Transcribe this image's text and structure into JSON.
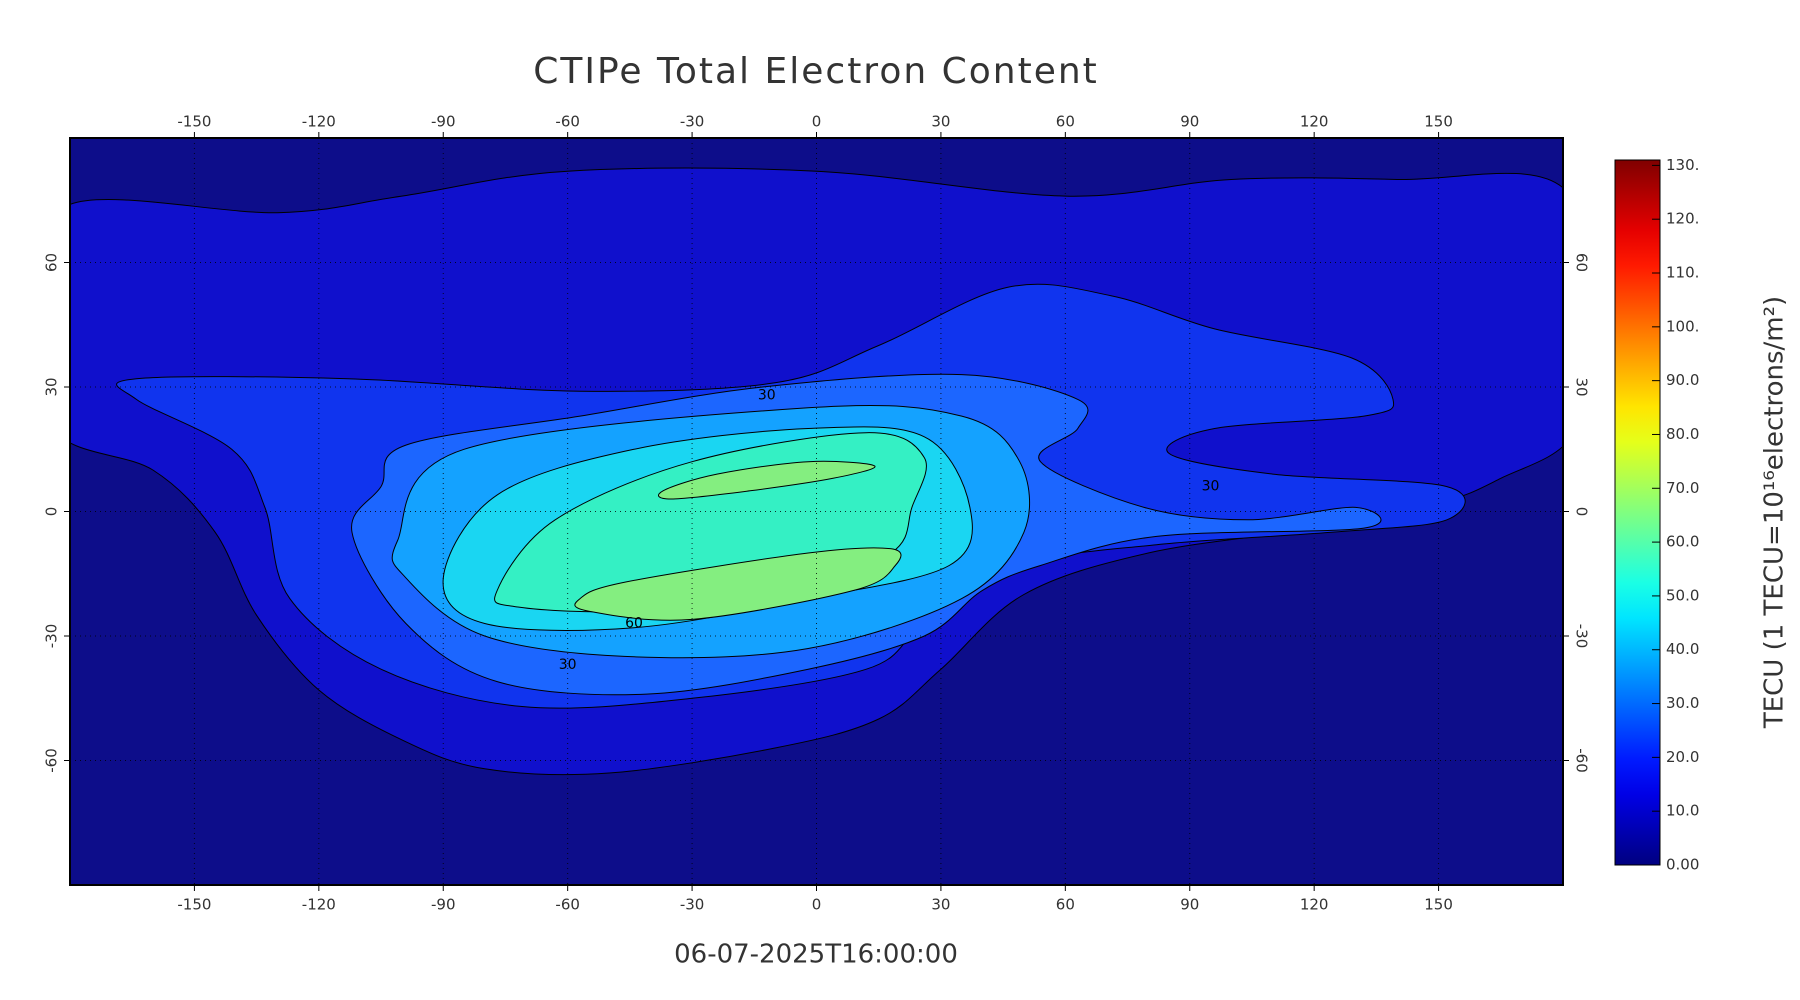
{
  "chart_data": {
    "type": "contour",
    "title": "CTIPe Total Electron Content",
    "subtitle": "06-07-2025T16:00:00",
    "xlim": [
      -180,
      180
    ],
    "ylim": [
      -90,
      90
    ],
    "xticks": [
      -150,
      -120,
      -90,
      -60,
      -30,
      0,
      30,
      60,
      90,
      120,
      150
    ],
    "yticks": [
      -60,
      -30,
      0,
      30,
      60
    ],
    "grid": true,
    "background_color": "#0d0d8a",
    "levels": [
      10,
      20,
      30,
      40,
      50,
      60,
      70
    ],
    "level_colors": [
      "#1010cc",
      "#1034ee",
      "#1c66ff",
      "#14a2ff",
      "#1ad6f2",
      "#34f0c4",
      "#84ee80"
    ],
    "contour_labels": [
      60,
      30,
      30,
      30
    ],
    "colorbar": {
      "label": "TECU (1 TECU=10¹⁶electrons/m²)",
      "colormap": "jet",
      "lim": [
        0,
        131
      ],
      "ticks": [
        {
          "value": 0,
          "label": "0.00"
        },
        {
          "value": 10,
          "label": "10.0"
        },
        {
          "value": 20,
          "label": "20.0"
        },
        {
          "value": 30,
          "label": "30.0"
        },
        {
          "value": 40,
          "label": "40.0"
        },
        {
          "value": 50,
          "label": "50.0"
        },
        {
          "value": 60,
          "label": "60.0"
        },
        {
          "value": 70,
          "label": "70.0"
        },
        {
          "value": 80,
          "label": "80.0"
        },
        {
          "value": 90,
          "label": "90.0"
        },
        {
          "value": 100,
          "label": "100."
        },
        {
          "value": 110,
          "label": "110."
        },
        {
          "value": 120,
          "label": "120."
        },
        {
          "value": 130,
          "label": "130."
        }
      ]
    }
  }
}
